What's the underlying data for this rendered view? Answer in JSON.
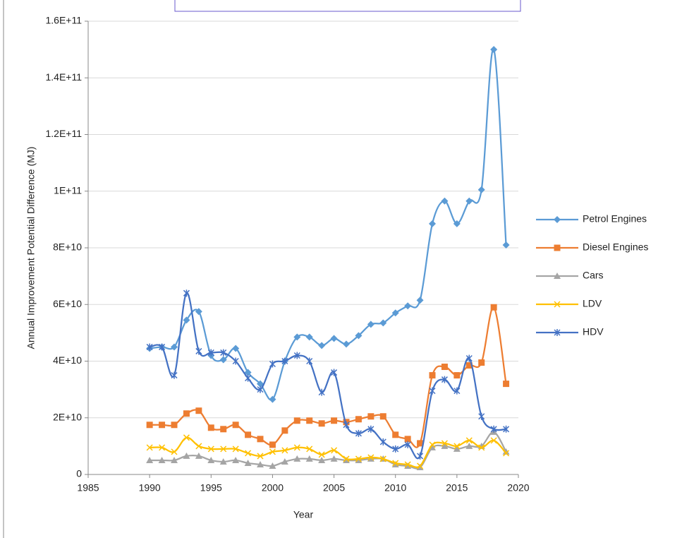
{
  "chart_data": {
    "type": "line",
    "x": [
      1990,
      1991,
      1992,
      1993,
      1994,
      1995,
      1996,
      1997,
      1998,
      1999,
      2000,
      2001,
      2002,
      2003,
      2004,
      2005,
      2006,
      2007,
      2008,
      2009,
      2010,
      2011,
      2012,
      2013,
      2014,
      2015,
      2016,
      2017,
      2018,
      2019
    ],
    "xlabel": "Year",
    "ylabel": "Annual Improvement Potential Difference (MJ)",
    "xlim": [
      1985,
      2020
    ],
    "xticks": [
      1985,
      1990,
      1995,
      2000,
      2005,
      2010,
      2015,
      2020
    ],
    "ylim": [
      0,
      160000000000
    ],
    "yticks": [
      0,
      {
        "value": 20000000000,
        "label": "2E+10"
      },
      {
        "value": 40000000000,
        "label": "4E+10"
      },
      {
        "value": 60000000000,
        "label": "6E+10"
      },
      {
        "value": 80000000000,
        "label": "8E+10"
      },
      {
        "value": 100000000000,
        "label": "1E+11"
      },
      {
        "value": 120000000000,
        "label": "1.2E+11"
      },
      {
        "value": 140000000000,
        "label": "1.4E+11"
      },
      {
        "value": 160000000000,
        "label": "1.6E+11"
      }
    ],
    "grid": true,
    "legend": "right",
    "series": [
      {
        "name": "Petrol Engines",
        "color": "#5b9bd5",
        "marker": "diamond",
        "values": [
          44500000000,
          45000000000,
          45000000000,
          54500000000,
          57500000000,
          42000000000,
          40500000000,
          44500000000,
          36000000000,
          32000000000,
          26500000000,
          40000000000,
          48500000000,
          48500000000,
          45500000000,
          48000000000,
          46000000000,
          49000000000,
          53000000000,
          53500000000,
          57000000000,
          59500000000,
          61500000000,
          88500000000,
          96500000000,
          88500000000,
          96500000000,
          100500000000,
          150000000000,
          81000000000
        ]
      },
      {
        "name": "Diesel Engines",
        "color": "#ed7d31",
        "marker": "square",
        "values": [
          17500000000,
          17500000000,
          17500000000,
          21500000000,
          22500000000,
          16500000000,
          16000000000,
          17500000000,
          14000000000,
          12500000000,
          10500000000,
          15500000000,
          19000000000,
          19000000000,
          18000000000,
          19000000000,
          18500000000,
          19500000000,
          20500000000,
          20500000000,
          14000000000,
          12500000000,
          11000000000,
          35000000000,
          38000000000,
          35000000000,
          38500000000,
          39500000000,
          59000000000,
          32000000000
        ]
      },
      {
        "name": "Cars",
        "color": "#a5a5a5",
        "marker": "triangle",
        "values": [
          5000000000,
          5000000000,
          5000000000,
          6500000000,
          6500000000,
          5000000000,
          4500000000,
          5000000000,
          4000000000,
          3500000000,
          3000000000,
          4500000000,
          5500000000,
          5500000000,
          5000000000,
          5500000000,
          5000000000,
          5000000000,
          5500000000,
          5500000000,
          3500000000,
          3000000000,
          2500000000,
          9500000000,
          10000000000,
          9000000000,
          10000000000,
          10000000000,
          15000000000,
          8000000000
        ]
      },
      {
        "name": "LDV",
        "color": "#ffc000",
        "marker": "x",
        "values": [
          9500000000,
          9500000000,
          8000000000,
          13000000000,
          10000000000,
          9000000000,
          9000000000,
          9000000000,
          7500000000,
          6500000000,
          8000000000,
          8500000000,
          9500000000,
          9000000000,
          7000000000,
          8500000000,
          5500000000,
          5500000000,
          6000000000,
          5500000000,
          4000000000,
          3500000000,
          3000000000,
          10500000000,
          11000000000,
          10000000000,
          12000000000,
          9500000000,
          12000000000,
          7500000000
        ]
      },
      {
        "name": "HDV",
        "color": "#4472c4",
        "marker": "star",
        "values": [
          45000000000,
          45000000000,
          35000000000,
          64000000000,
          43500000000,
          43000000000,
          43000000000,
          40000000000,
          34000000000,
          30000000000,
          39000000000,
          40000000000,
          42000000000,
          40000000000,
          29000000000,
          36000000000,
          17500000000,
          14500000000,
          16000000000,
          11500000000,
          9000000000,
          10500000000,
          6500000000,
          29500000000,
          33500000000,
          29500000000,
          41000000000,
          20500000000,
          16000000000,
          16000000000
        ]
      }
    ]
  }
}
